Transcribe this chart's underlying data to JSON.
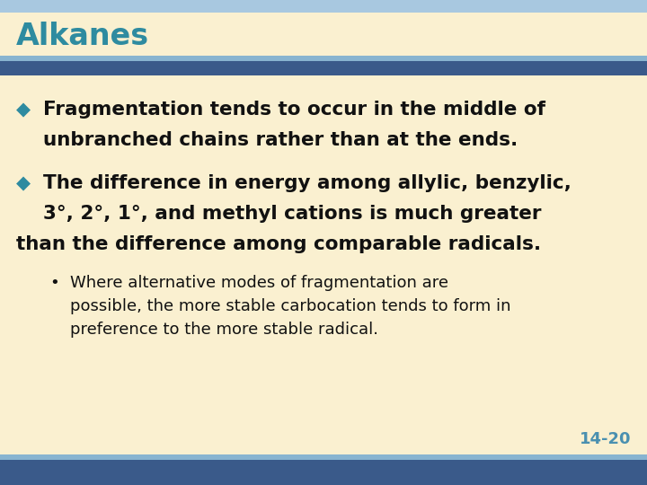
{
  "title": "Alkanes",
  "title_color": "#2E8BA0",
  "background_color": "#FAF0D0",
  "bullet1_line1": "Fragmentation tends to occur in the middle of",
  "bullet1_line2": "unbranched chains rather than at the ends.",
  "bullet2_line1": "The difference in energy among allylic, benzylic,",
  "bullet2_line2": "3°, 2°, 1°, and methyl cations is much greater",
  "bullet2_line3": "than the difference among comparable radicals.",
  "sub_line1": "Where alternative modes of fragmentation are",
  "sub_line2": "possible, the more stable carbocation tends to form in",
  "sub_line3": "preference to the more stable radical.",
  "page_num": "14-20",
  "page_num_color": "#4A90B0",
  "bullet_color": "#2E8BA0",
  "text_color": "#111111",
  "bold_fontsize": 15.5,
  "sub_fontsize": 13,
  "title_fontsize": 24,
  "top_bar_color": "#B8D4E8",
  "top_band_color": "#4A6EA0",
  "bottom_bar_color": "#4A6EA0"
}
